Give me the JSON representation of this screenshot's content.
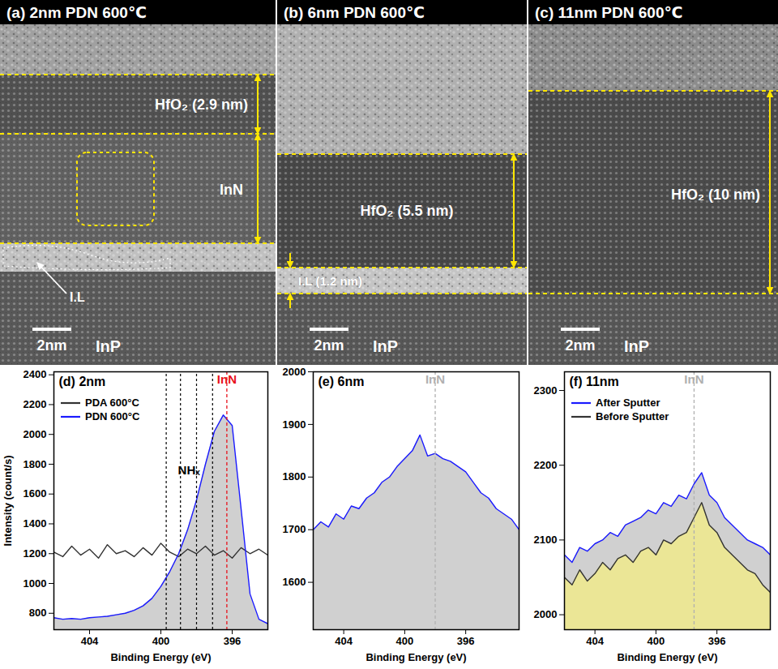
{
  "tem_panels": [
    {
      "title": "(a) 2nm PDN 600℃",
      "layers": [
        "HfO₂ (2.9 nm)",
        "InN",
        "I.L",
        "InP"
      ],
      "scale_bar": "2nm"
    },
    {
      "title": "(b) 6nm PDN 600℃",
      "layers": [
        "HfO₂ (5.5 nm)",
        "I.L (1.2 nm)",
        "InP"
      ],
      "scale_bar": "2nm"
    },
    {
      "title": "(c) 11nm PDN 600℃",
      "layers": [
        "HfO₂ (10 nm)",
        "InP"
      ],
      "scale_bar": "2nm"
    }
  ],
  "chart_data": [
    {
      "type": "line",
      "title": "(d) 2nm",
      "x_label": "Binding Energy (eV)",
      "y_label": "Intensity (count/s)",
      "x": [
        406,
        405.5,
        405,
        404.5,
        404,
        403.5,
        403,
        402.5,
        402,
        401.5,
        401,
        400.5,
        400,
        399.5,
        399,
        398.5,
        398,
        397.5,
        397,
        396.5,
        396,
        395.5,
        395,
        394.5,
        394
      ],
      "series": [
        {
          "name": "PDA 600°C",
          "color": "#333333",
          "type": "line",
          "values": [
            1210,
            1180,
            1250,
            1190,
            1230,
            1170,
            1260,
            1200,
            1220,
            1180,
            1240,
            1190,
            1270,
            1210,
            1180,
            1230,
            1200,
            1250,
            1190,
            1220,
            1170,
            1240,
            1200,
            1230,
            1190
          ]
        },
        {
          "name": "PDN 600°C",
          "color": "#1a1aff",
          "type": "area",
          "values": [
            770,
            760,
            765,
            760,
            770,
            775,
            780,
            790,
            800,
            820,
            850,
            900,
            980,
            1080,
            1200,
            1360,
            1560,
            1800,
            2020,
            2130,
            2060,
            1500,
            930,
            760,
            730
          ]
        }
      ],
      "xlim": [
        406,
        394
      ],
      "xticks": [
        404,
        400,
        396
      ],
      "ylim": [
        690,
        2420
      ],
      "yticks": [
        800,
        1000,
        1200,
        1400,
        1600,
        1800,
        2000,
        2200,
        2400
      ],
      "legend": "top-left",
      "annotations": [
        {
          "text": "InN",
          "x": 396.3,
          "color": "#e8101a"
        },
        {
          "text": "NHₓ",
          "x": [
            399.7,
            398.9,
            398.0,
            397.1
          ]
        }
      ]
    },
    {
      "type": "line",
      "title": "(e) 6nm",
      "x_label": "Binding Energy (eV)",
      "x": [
        406,
        405.5,
        405,
        404.5,
        404,
        403.5,
        403,
        402.5,
        402,
        401.5,
        401,
        400.5,
        400,
        399.5,
        399,
        398.5,
        398,
        397.5,
        397,
        396.5,
        396,
        395.5,
        395,
        394.5,
        394,
        393.5,
        393,
        392.5
      ],
      "series": [
        {
          "color": "#1a1aff",
          "type": "area",
          "values": [
            1700,
            1715,
            1705,
            1730,
            1720,
            1745,
            1740,
            1760,
            1770,
            1790,
            1800,
            1820,
            1835,
            1850,
            1880,
            1840,
            1845,
            1835,
            1830,
            1820,
            1810,
            1790,
            1770,
            1760,
            1740,
            1730,
            1720,
            1700
          ]
        }
      ],
      "xlim": [
        406,
        392.5
      ],
      "xticks": [
        404,
        400,
        396
      ],
      "ylim": [
        1510,
        2000
      ],
      "yticks": [
        1600,
        1700,
        1800,
        1900,
        2000
      ],
      "annotations": [
        {
          "text": "InN",
          "x": 398,
          "color": "#b0b0b0"
        }
      ]
    },
    {
      "type": "line",
      "title": "(f) 11nm",
      "x_label": "Binding Energy (eV)",
      "x": [
        406,
        405.5,
        405,
        404.5,
        404,
        403.5,
        403,
        402.5,
        402,
        401.5,
        401,
        400.5,
        400,
        399.5,
        399,
        398.5,
        398,
        397.5,
        397,
        396.5,
        396,
        395.5,
        395,
        394.5,
        394,
        393.5,
        393,
        392.5
      ],
      "series": [
        {
          "name": "After Sputter",
          "color": "#1a1aff",
          "type": "area",
          "values": [
            2080,
            2070,
            2090,
            2085,
            2095,
            2100,
            2110,
            2105,
            2120,
            2125,
            2130,
            2140,
            2135,
            2150,
            2145,
            2160,
            2155,
            2175,
            2190,
            2160,
            2150,
            2130,
            2120,
            2110,
            2100,
            2095,
            2090,
            2080
          ]
        },
        {
          "name": "Before Sputter",
          "color": "#333333",
          "type": "area",
          "values": [
            2050,
            2040,
            2060,
            2045,
            2055,
            2070,
            2060,
            2075,
            2080,
            2070,
            2085,
            2090,
            2080,
            2100,
            2095,
            2105,
            2110,
            2130,
            2150,
            2120,
            2110,
            2090,
            2080,
            2070,
            2060,
            2055,
            2040,
            2030
          ]
        }
      ],
      "xlim": [
        406,
        392.5
      ],
      "xticks": [
        404,
        400,
        396
      ],
      "ylim": [
        1980,
        2325
      ],
      "yticks": [
        2000,
        2100,
        2200,
        2300
      ],
      "legend": "top-left",
      "annotations": [
        {
          "text": "InN",
          "x": 397.5,
          "color": "#b0b0b0"
        }
      ]
    }
  ]
}
